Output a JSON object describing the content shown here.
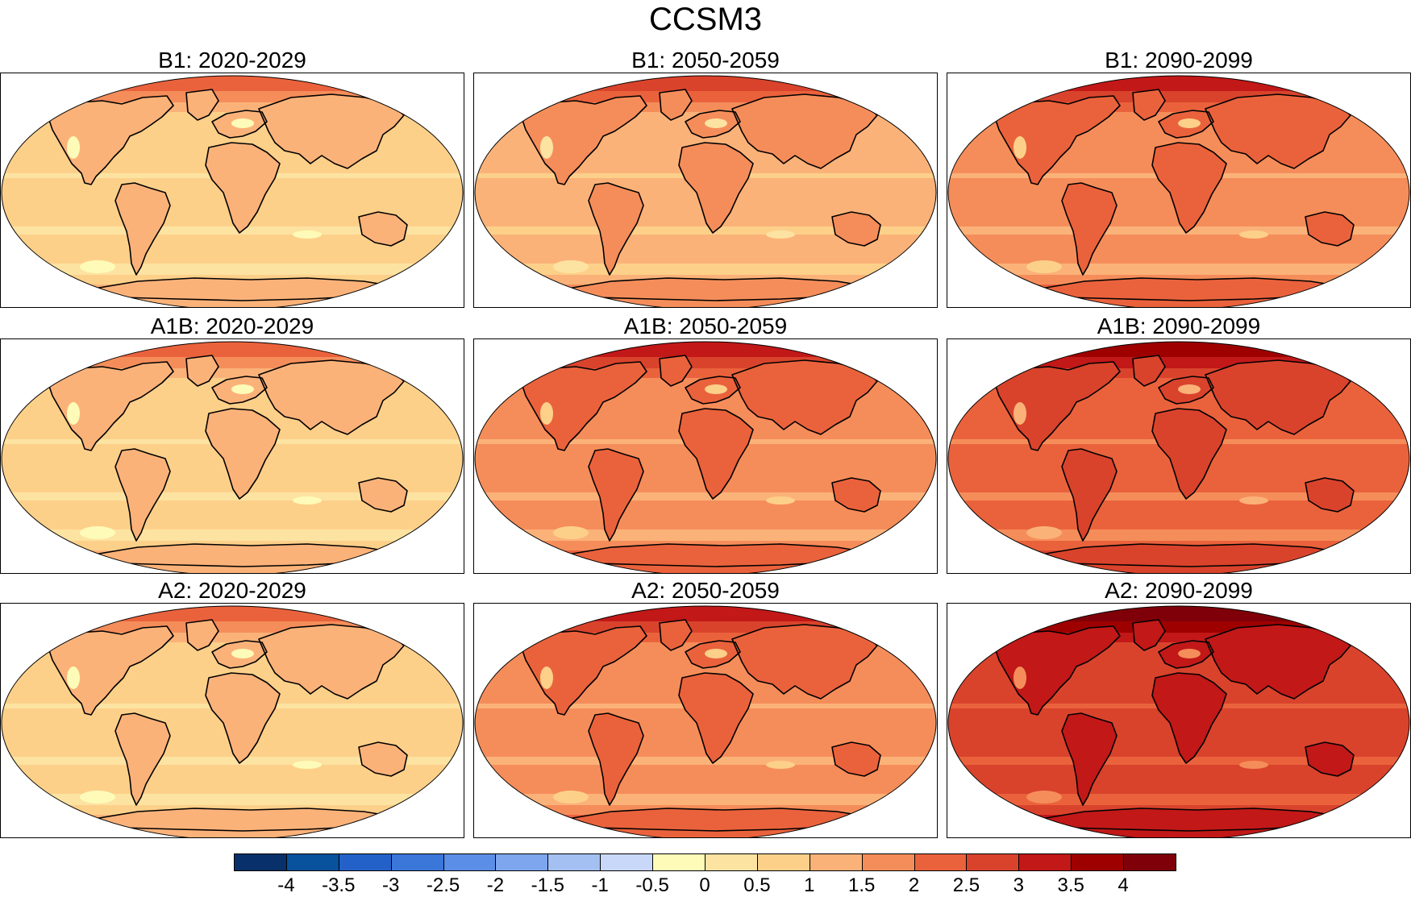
{
  "figure": {
    "title": "CCSM3"
  },
  "panels": [
    {
      "scenario": "B1",
      "period": "2020-2029",
      "title": "B1: 2020-2029",
      "intensity": 1
    },
    {
      "scenario": "B1",
      "period": "2050-2059",
      "title": "B1: 2050-2059",
      "intensity": 2
    },
    {
      "scenario": "B1",
      "period": "2090-2099",
      "title": "B1: 2090-2099",
      "intensity": 3
    },
    {
      "scenario": "A1B",
      "period": "2020-2029",
      "title": "A1B: 2020-2029",
      "intensity": 1
    },
    {
      "scenario": "A1B",
      "period": "2050-2059",
      "title": "A1B: 2050-2059",
      "intensity": 3
    },
    {
      "scenario": "A1B",
      "period": "2090-2099",
      "title": "A1B: 2090-2099",
      "intensity": 4
    },
    {
      "scenario": "A2",
      "period": "2020-2029",
      "title": "A2: 2020-2029",
      "intensity": 1
    },
    {
      "scenario": "A2",
      "period": "2050-2059",
      "title": "A2: 2050-2059",
      "intensity": 3
    },
    {
      "scenario": "A2",
      "period": "2090-2099",
      "title": "A2: 2090-2099",
      "intensity": 5
    }
  ],
  "colorbar": {
    "labels": [
      "-4",
      "-3.5",
      "-3",
      "-2.5",
      "-2",
      "-1.5",
      "-1",
      "-0.5",
      "0",
      "0.5",
      "1",
      "1.5",
      "2",
      "2.5",
      "3",
      "3.5",
      "4"
    ],
    "colors": [
      "#08306b",
      "#08519c",
      "#2361c9",
      "#3b76d9",
      "#5b8ee6",
      "#7ea6ee",
      "#a4c0f2",
      "#c9d8f8",
      "#fefbb8",
      "#fde3a2",
      "#fdd08a",
      "#fbb279",
      "#f58d5a",
      "#ea623c",
      "#d9432c",
      "#c21818",
      "#9e0000",
      "#7f0008"
    ]
  }
}
